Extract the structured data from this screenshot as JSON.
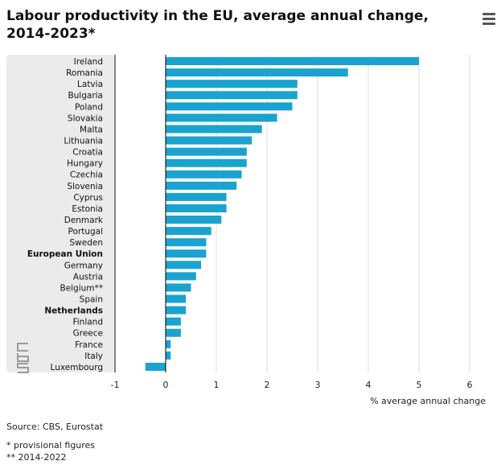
{
  "chart_data": {
    "type": "bar",
    "orientation": "horizontal",
    "title": "Labour productivity in the EU, average annual change, 2014-2023*",
    "xlabel": "% average annual change",
    "xlim": [
      -1,
      6
    ],
    "xticks": [
      "-1",
      "0",
      "1",
      "2",
      "3",
      "4",
      "5",
      "6"
    ],
    "grid": true,
    "bar_color": "#1aa3cf",
    "categories": [
      "Ireland",
      "Romania",
      "Latvia",
      "Bulgaria",
      "Poland",
      "Slovakia",
      "Malta",
      "Lithuania",
      "Croatia",
      "Hungary",
      "Czechia",
      "Slovenia",
      "Cyprus",
      "Estonia",
      "Denmark",
      "Portugal",
      "Sweden",
      "European Union",
      "Germany",
      "Austria",
      "Belgium**",
      "Spain",
      "Netherlands",
      "Finland",
      "Greece",
      "France",
      "Italy",
      "Luxembourg"
    ],
    "bold_categories": [
      "European Union",
      "Netherlands"
    ],
    "values": [
      5.0,
      3.6,
      2.6,
      2.6,
      2.5,
      2.2,
      1.9,
      1.7,
      1.6,
      1.6,
      1.5,
      1.4,
      1.2,
      1.2,
      1.1,
      0.9,
      0.8,
      0.8,
      0.7,
      0.6,
      0.5,
      0.4,
      0.4,
      0.3,
      0.3,
      0.1,
      0.1,
      -0.4
    ]
  },
  "logo_icon": "cbs-logo-icon",
  "menu_icon": "hamburger-menu-icon",
  "source": "Source: CBS, Eurostat",
  "notes": [
    "* provisional figures",
    "** 2014-2022"
  ]
}
